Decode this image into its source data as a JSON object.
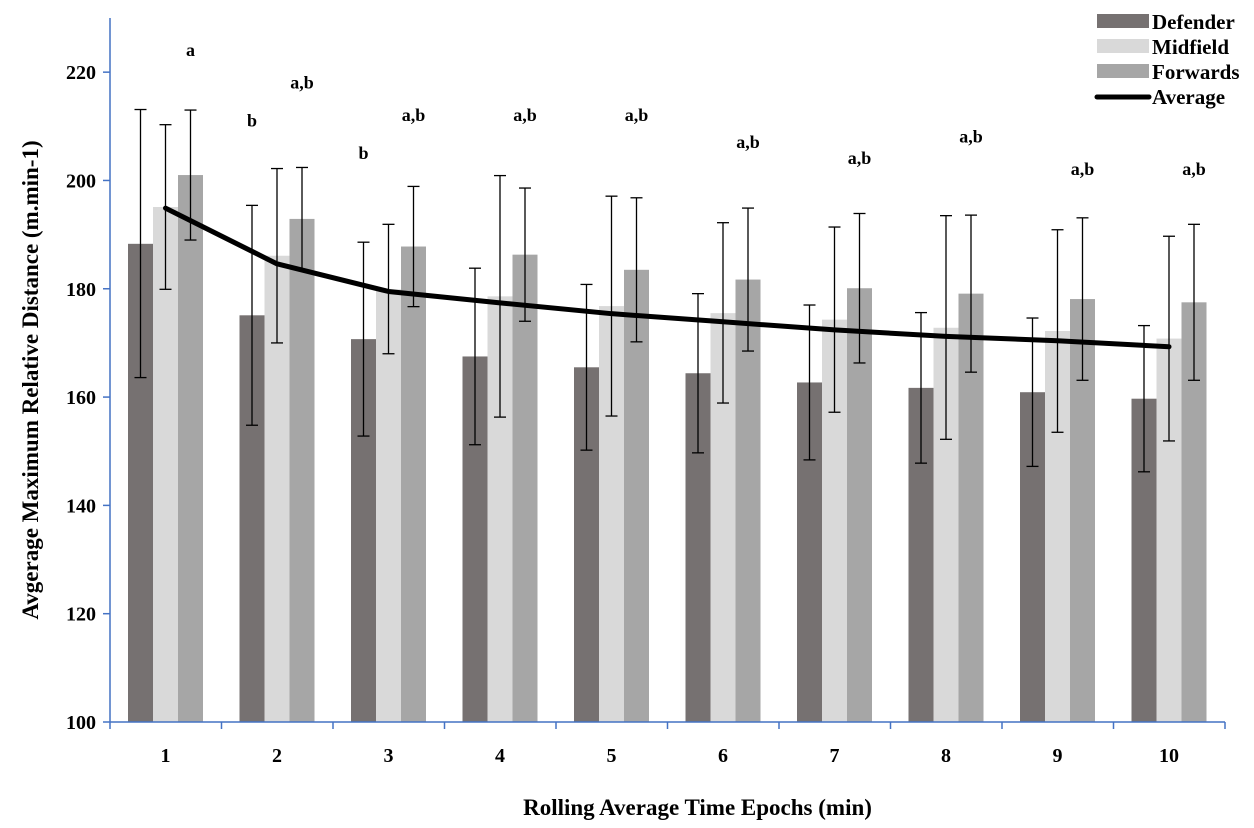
{
  "chart_data": {
    "type": "bar",
    "title": "",
    "xlabel": "Rolling Average Time Epochs (min)",
    "ylabel": "Avgerage Maximum Relative Distance (m.min-1)",
    "ylim": [
      100,
      230
    ],
    "yticks": [
      100,
      120,
      140,
      160,
      180,
      200,
      220
    ],
    "grid": false,
    "legend_position": "top-right",
    "categories": [
      "1",
      "2",
      "3",
      "4",
      "5",
      "6",
      "7",
      "8",
      "9",
      "10"
    ],
    "series": [
      {
        "name": "Defender",
        "color": "#767171",
        "values": [
          188.3,
          175.1,
          170.7,
          167.5,
          165.5,
          164.4,
          162.7,
          161.7,
          160.9,
          159.7
        ],
        "err_high": [
          213.1,
          195.4,
          188.6,
          183.8,
          180.8,
          179.1,
          177.0,
          175.6,
          174.6,
          173.2
        ],
        "err_low": [
          163.6,
          154.8,
          152.8,
          151.2,
          150.2,
          149.7,
          148.4,
          147.8,
          147.2,
          146.2
        ]
      },
      {
        "name": "Midfield",
        "color": "#d9d9d9",
        "values": [
          195.1,
          186.1,
          179.9,
          178.6,
          176.8,
          175.5,
          174.3,
          172.8,
          172.2,
          170.8
        ],
        "err_high": [
          210.3,
          202.2,
          191.9,
          200.9,
          197.1,
          192.2,
          191.4,
          193.5,
          190.9,
          189.7
        ],
        "err_low": [
          179.9,
          170.0,
          168.0,
          156.3,
          156.5,
          158.9,
          157.2,
          152.2,
          153.5,
          151.9
        ]
      },
      {
        "name": "Forwards",
        "color": "#a6a6a6",
        "values": [
          201.0,
          192.9,
          187.8,
          186.3,
          183.5,
          181.7,
          180.1,
          179.1,
          178.1,
          177.5
        ],
        "err_high": [
          213.0,
          202.4,
          198.9,
          198.6,
          196.8,
          194.9,
          193.9,
          193.6,
          193.1,
          191.9
        ],
        "err_low": [
          189.0,
          183.4,
          176.7,
          174.0,
          170.2,
          168.5,
          166.3,
          164.6,
          163.1,
          163.1
        ]
      }
    ],
    "line_series": {
      "name": "Average",
      "color": "#000000",
      "values": [
        194.9,
        184.6,
        179.5,
        177.4,
        175.4,
        173.9,
        172.4,
        171.2,
        170.4,
        169.3
      ]
    },
    "annotations": [
      {
        "text": "a",
        "category": "1",
        "series": "Forwards",
        "y": 223
      },
      {
        "text": "b",
        "category": "2",
        "series": "Defender",
        "y": 210
      },
      {
        "text": "a,b",
        "category": "2",
        "series": "Forwards",
        "y": 217
      },
      {
        "text": "b",
        "category": "3",
        "series": "Defender",
        "y": 204
      },
      {
        "text": "a,b",
        "category": "3",
        "series": "Forwards",
        "y": 211
      },
      {
        "text": "a,b",
        "category": "4",
        "series": "Forwards",
        "y": 211
      },
      {
        "text": "a,b",
        "category": "5",
        "series": "Forwards",
        "y": 211
      },
      {
        "text": "a,b",
        "category": "6",
        "series": "Forwards",
        "y": 206
      },
      {
        "text": "a,b",
        "category": "7",
        "series": "Forwards",
        "y": 203
      },
      {
        "text": "a,b",
        "category": "8",
        "series": "Forwards",
        "y": 207
      },
      {
        "text": "a,b",
        "category": "9",
        "series": "Forwards",
        "y": 201
      },
      {
        "text": "a,b",
        "category": "10",
        "series": "Forwards",
        "y": 201
      }
    ]
  }
}
